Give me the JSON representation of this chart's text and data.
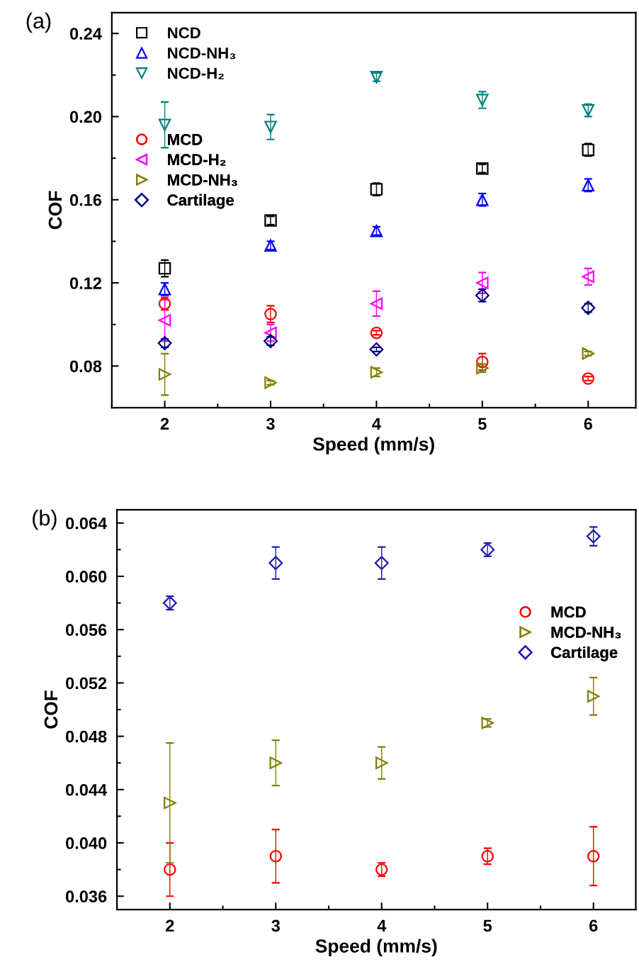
{
  "chart_data": [
    {
      "type": "scatter",
      "title": "(a)",
      "xlabel": "Speed (mm/s)",
      "ylabel": "COF",
      "x": [
        2,
        3,
        4,
        5,
        6
      ],
      "xlim": [
        1.5,
        6.45
      ],
      "xticks": [
        2,
        3,
        4,
        5,
        6
      ],
      "ylim": [
        0.06,
        0.25
      ],
      "yticks": [
        {
          "value": 0.08,
          "label": "0.08"
        },
        {
          "value": 0.12,
          "label": "0.12"
        },
        {
          "value": 0.16,
          "label": "0.16"
        },
        {
          "value": 0.2,
          "label": "0.20"
        },
        {
          "value": 0.24,
          "label": "0.24"
        }
      ],
      "grid": false,
      "legend": "top left",
      "series": [
        {
          "name": "NCD",
          "color": "#000000",
          "marker": "square",
          "values": [
            0.127,
            0.15,
            0.165,
            0.175,
            0.184
          ],
          "errors": [
            0.004,
            0.002,
            0.003,
            0.002,
            0.003
          ]
        },
        {
          "name": "NCD-NH₃",
          "color": "#0000ff",
          "marker": "triangle",
          "values": [
            0.117,
            0.138,
            0.145,
            0.16,
            0.167
          ],
          "errors": [
            0.003,
            0.002,
            0.002,
            0.003,
            0.003
          ]
        },
        {
          "name": "NCD-H₂",
          "color": "#008080",
          "marker": "triangle-down",
          "values": [
            0.196,
            0.195,
            0.219,
            0.208,
            0.203
          ],
          "errors": [
            0.011,
            0.006,
            0.002,
            0.004,
            0.003
          ]
        },
        {
          "name": "MCD",
          "color": "#ff0000",
          "marker": "circle",
          "values": [
            0.11,
            0.105,
            0.096,
            0.082,
            0.074
          ],
          "errors": [
            0.003,
            0.004,
            0.001,
            0.004,
            0.001
          ]
        },
        {
          "name": "MCD-H₂",
          "color": "#ff00ff",
          "marker": "triangle-left",
          "values": [
            0.102,
            0.096,
            0.11,
            0.12,
            0.123
          ],
          "errors": [
            0.01,
            0.004,
            0.006,
            0.005,
            0.004
          ]
        },
        {
          "name": "MCD-NH₃",
          "color": "#808000",
          "marker": "triangle-right",
          "values": [
            0.076,
            0.072,
            0.077,
            0.079,
            0.086
          ],
          "errors": [
            0.01,
            0.001,
            0.002,
            0.002,
            0.001
          ]
        },
        {
          "name": "Cartilage",
          "color": "#000080",
          "marker": "diamond",
          "values": [
            0.091,
            0.092,
            0.088,
            0.114,
            0.108
          ],
          "errors": [
            0.002,
            0.002,
            0.001,
            0.003,
            0.002
          ]
        }
      ]
    },
    {
      "type": "scatter",
      "title": "(b)",
      "xlabel": "Speed (mm/s)",
      "ylabel": "COF",
      "x": [
        2,
        3,
        4,
        5,
        6
      ],
      "xlim": [
        1.5,
        6.4
      ],
      "xticks": [
        2,
        3,
        4,
        5,
        6
      ],
      "ylim": [
        0.035,
        0.065
      ],
      "yticks": [
        {
          "value": 0.036,
          "label": "0.036"
        },
        {
          "value": 0.04,
          "label": "0.040"
        },
        {
          "value": 0.044,
          "label": "0.044"
        },
        {
          "value": 0.048,
          "label": "0.048"
        },
        {
          "value": 0.052,
          "label": "0.052"
        },
        {
          "value": 0.056,
          "label": "0.056"
        },
        {
          "value": 0.06,
          "label": "0.060"
        },
        {
          "value": 0.064,
          "label": "0.064"
        }
      ],
      "grid": false,
      "legend": "right",
      "series": [
        {
          "name": "MCD",
          "color": "#ff0000",
          "marker": "circle",
          "values": [
            0.038,
            0.039,
            0.038,
            0.039,
            0.039
          ],
          "errors": [
            0.002,
            0.002,
            0.0005,
            0.0006,
            0.0022
          ]
        },
        {
          "name": "MCD-NH₃",
          "color": "#808000",
          "marker": "triangle-right",
          "values": [
            0.043,
            0.046,
            0.046,
            0.049,
            0.051
          ],
          "errors": [
            0.0045,
            0.0017,
            0.0012,
            0.0003,
            0.0014
          ]
        },
        {
          "name": "Cartilage",
          "color": "#1c1cb0",
          "marker": "diamond",
          "values": [
            0.058,
            0.061,
            0.061,
            0.062,
            0.063
          ],
          "errors": [
            0.0005,
            0.0012,
            0.0012,
            0.0005,
            0.0007
          ]
        }
      ]
    }
  ]
}
